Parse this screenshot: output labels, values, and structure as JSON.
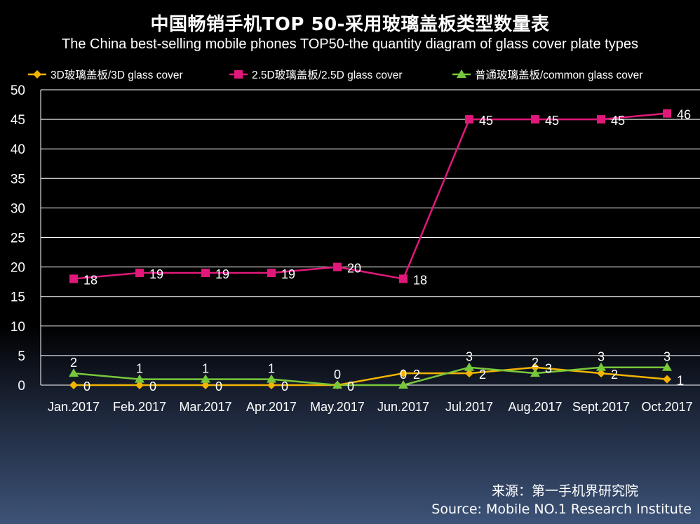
{
  "chart_data": {
    "type": "line",
    "title": "中国畅销手机TOP 50-采用玻璃盖板类型数量表",
    "subtitle": "The China best-selling mobile phones TOP50-the quantity diagram of glass cover plate types",
    "categories": [
      "Jan.2017",
      "Feb.2017",
      "Mar.2017",
      "Apr.2017",
      "May.2017",
      "Jun.2017",
      "Jul.2017",
      "Aug.2017",
      "Sept.2017",
      "Oct.2017"
    ],
    "series": [
      {
        "name": "3D玻璃盖板/3D glass cover",
        "color": "#f2b400",
        "marker": "diamond",
        "values": [
          0,
          0,
          0,
          0,
          0,
          2,
          2,
          3,
          2,
          1
        ]
      },
      {
        "name": "2.5D玻璃盖板/2.5D glass cover",
        "color": "#e0187a",
        "marker": "square",
        "values": [
          18,
          19,
          19,
          19,
          20,
          18,
          45,
          45,
          45,
          46
        ]
      },
      {
        "name": "普通玻璃盖板/common glass cover",
        "color": "#78c83c",
        "marker": "triangle",
        "values": [
          2,
          1,
          1,
          1,
          0,
          0,
          3,
          2,
          3,
          3
        ]
      }
    ],
    "ylim": [
      0,
      50
    ],
    "yticks": [
      0,
      5,
      10,
      15,
      20,
      25,
      30,
      35,
      40,
      45,
      50
    ],
    "grid": true,
    "legend": "top"
  },
  "source": {
    "cn": "来源：第一手机界研究院",
    "en": "Source: Mobile NO.1 Research Institute"
  }
}
